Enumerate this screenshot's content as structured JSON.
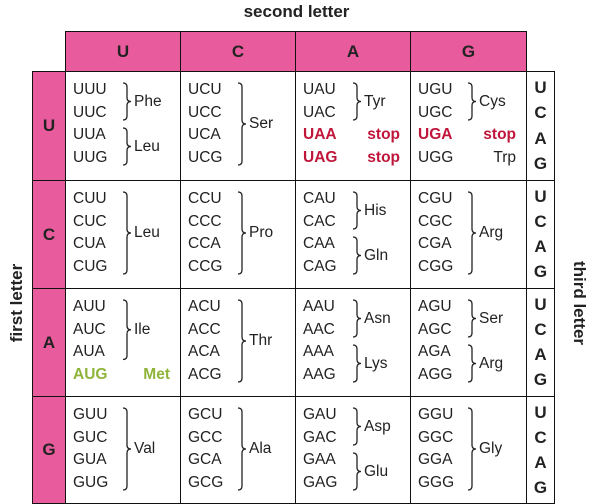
{
  "axes": {
    "second_letter": "second letter",
    "first_letter": "first letter",
    "third_letter": "third letter"
  },
  "second_letters": [
    "U",
    "C",
    "A",
    "G"
  ],
  "first_letters": [
    "U",
    "C",
    "A",
    "G"
  ],
  "third_letters": [
    "U",
    "C",
    "A",
    "G"
  ],
  "rows": [
    {
      "first": "U",
      "cells": [
        {
          "codons": [
            {
              "text": "UUU"
            },
            {
              "text": "UUC"
            },
            {
              "text": "UUA"
            },
            {
              "text": "UUG"
            }
          ],
          "groups": [
            {
              "rows": [
                0,
                1
              ],
              "aa": "Phe"
            },
            {
              "rows": [
                2,
                3
              ],
              "aa": "Leu"
            }
          ],
          "singles": []
        },
        {
          "codons": [
            {
              "text": "UCU"
            },
            {
              "text": "UCC"
            },
            {
              "text": "UCA"
            },
            {
              "text": "UCG"
            }
          ],
          "groups": [
            {
              "rows": [
                0,
                3
              ],
              "aa": "Ser"
            }
          ],
          "singles": []
        },
        {
          "codons": [
            {
              "text": "UAU"
            },
            {
              "text": "UAC"
            },
            {
              "text": "UAA",
              "style": "stop"
            },
            {
              "text": "UAG",
              "style": "stop"
            }
          ],
          "groups": [
            {
              "rows": [
                0,
                1
              ],
              "aa": "Tyr"
            }
          ],
          "singles": [
            {
              "row": 2,
              "aa": "stop",
              "style": "stop"
            },
            {
              "row": 3,
              "aa": "stop",
              "style": "stop"
            }
          ]
        },
        {
          "codons": [
            {
              "text": "UGU"
            },
            {
              "text": "UGC"
            },
            {
              "text": "UGA",
              "style": "stop"
            },
            {
              "text": "UGG"
            }
          ],
          "groups": [
            {
              "rows": [
                0,
                1
              ],
              "aa": "Cys"
            }
          ],
          "singles": [
            {
              "row": 2,
              "aa": "stop",
              "style": "stop"
            },
            {
              "row": 3,
              "aa": "Trp",
              "style": "plain"
            }
          ]
        }
      ]
    },
    {
      "first": "C",
      "cells": [
        {
          "codons": [
            {
              "text": "CUU"
            },
            {
              "text": "CUC"
            },
            {
              "text": "CUA"
            },
            {
              "text": "CUG"
            }
          ],
          "groups": [
            {
              "rows": [
                0,
                3
              ],
              "aa": "Leu"
            }
          ],
          "singles": []
        },
        {
          "codons": [
            {
              "text": "CCU"
            },
            {
              "text": "CCC"
            },
            {
              "text": "CCA"
            },
            {
              "text": "CCG"
            }
          ],
          "groups": [
            {
              "rows": [
                0,
                3
              ],
              "aa": "Pro"
            }
          ],
          "singles": []
        },
        {
          "codons": [
            {
              "text": "CAU"
            },
            {
              "text": "CAC"
            },
            {
              "text": "CAA"
            },
            {
              "text": "CAG"
            }
          ],
          "groups": [
            {
              "rows": [
                0,
                1
              ],
              "aa": "His"
            },
            {
              "rows": [
                2,
                3
              ],
              "aa": "Gln"
            }
          ],
          "singles": []
        },
        {
          "codons": [
            {
              "text": "CGU"
            },
            {
              "text": "CGC"
            },
            {
              "text": "CGA"
            },
            {
              "text": "CGG"
            }
          ],
          "groups": [
            {
              "rows": [
                0,
                3
              ],
              "aa": "Arg"
            }
          ],
          "singles": []
        }
      ]
    },
    {
      "first": "A",
      "cells": [
        {
          "codons": [
            {
              "text": "AUU"
            },
            {
              "text": "AUC"
            },
            {
              "text": "AUA"
            },
            {
              "text": "AUG",
              "style": "start"
            }
          ],
          "groups": [
            {
              "rows": [
                0,
                2
              ],
              "aa": "Ile"
            }
          ],
          "singles": [
            {
              "row": 3,
              "aa": "Met",
              "style": "start"
            }
          ]
        },
        {
          "codons": [
            {
              "text": "ACU"
            },
            {
              "text": "ACC"
            },
            {
              "text": "ACA"
            },
            {
              "text": "ACG"
            }
          ],
          "groups": [
            {
              "rows": [
                0,
                3
              ],
              "aa": "Thr"
            }
          ],
          "singles": []
        },
        {
          "codons": [
            {
              "text": "AAU"
            },
            {
              "text": "AAC"
            },
            {
              "text": "AAA"
            },
            {
              "text": "AAG"
            }
          ],
          "groups": [
            {
              "rows": [
                0,
                1
              ],
              "aa": "Asn"
            },
            {
              "rows": [
                2,
                3
              ],
              "aa": "Lys"
            }
          ],
          "singles": []
        },
        {
          "codons": [
            {
              "text": "AGU"
            },
            {
              "text": "AGC"
            },
            {
              "text": "AGA"
            },
            {
              "text": "AGG"
            }
          ],
          "groups": [
            {
              "rows": [
                0,
                1
              ],
              "aa": "Ser"
            },
            {
              "rows": [
                2,
                3
              ],
              "aa": "Arg"
            }
          ],
          "singles": []
        }
      ]
    },
    {
      "first": "G",
      "cells": [
        {
          "codons": [
            {
              "text": "GUU"
            },
            {
              "text": "GUC"
            },
            {
              "text": "GUA"
            },
            {
              "text": "GUG"
            }
          ],
          "groups": [
            {
              "rows": [
                0,
                3
              ],
              "aa": "Val"
            }
          ],
          "singles": []
        },
        {
          "codons": [
            {
              "text": "GCU"
            },
            {
              "text": "GCC"
            },
            {
              "text": "GCA"
            },
            {
              "text": "GCG"
            }
          ],
          "groups": [
            {
              "rows": [
                0,
                3
              ],
              "aa": "Ala"
            }
          ],
          "singles": []
        },
        {
          "codons": [
            {
              "text": "GAU"
            },
            {
              "text": "GAC"
            },
            {
              "text": "GAA"
            },
            {
              "text": "GAG"
            }
          ],
          "groups": [
            {
              "rows": [
                0,
                1
              ],
              "aa": "Asp"
            },
            {
              "rows": [
                2,
                3
              ],
              "aa": "Glu"
            }
          ],
          "singles": []
        },
        {
          "codons": [
            {
              "text": "GGU"
            },
            {
              "text": "GGC"
            },
            {
              "text": "GGA"
            },
            {
              "text": "GGG"
            }
          ],
          "groups": [
            {
              "rows": [
                0,
                3
              ],
              "aa": "Gly"
            }
          ],
          "singles": []
        }
      ]
    }
  ],
  "colors": {
    "header_fill": "#e85b9c",
    "stop": "#c0163b",
    "start": "#8fb43a"
  }
}
